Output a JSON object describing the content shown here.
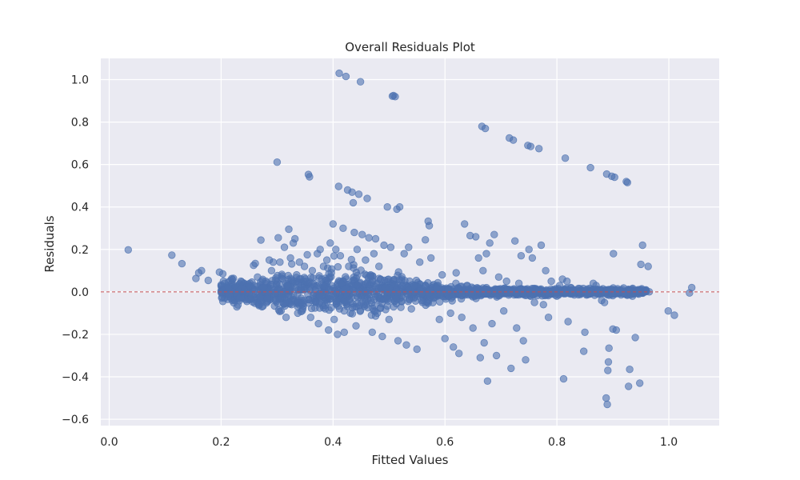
{
  "chart_data": {
    "type": "scatter",
    "title": "Overall Residuals Plot",
    "xlabel": "Fitted Values",
    "ylabel": "Residuals",
    "xlim": [
      -0.015,
      1.09
    ],
    "ylim": [
      -0.63,
      1.1
    ],
    "xticks": [
      0.0,
      0.2,
      0.4,
      0.6,
      0.8,
      1.0
    ],
    "yticks": [
      -0.6,
      -0.4,
      -0.2,
      0.0,
      0.2,
      0.4,
      0.6,
      0.8,
      1.0
    ],
    "xtick_labels": [
      "0.0",
      "0.2",
      "0.4",
      "0.6",
      "0.8",
      "1.0"
    ],
    "ytick_labels": [
      "−0.6",
      "−0.4",
      "−0.2",
      "0.0",
      "0.2",
      "0.4",
      "0.6",
      "0.8",
      "1.0"
    ],
    "grid": true,
    "reference_line": {
      "y": 0,
      "color": "#c44e52",
      "style": "dashed"
    },
    "colors": {
      "point": "#4c72b0",
      "background": "#eaeaf2",
      "grid": "#ffffff"
    },
    "series": [
      {
        "points": [
          [
            0.034,
            0.198
          ],
          [
            0.112,
            0.173
          ],
          [
            0.13,
            0.133
          ],
          [
            0.155,
            0.063
          ],
          [
            0.16,
            0.09
          ],
          [
            0.165,
            0.1
          ],
          [
            0.177,
            0.054
          ],
          [
            0.197,
            0.093
          ],
          [
            0.203,
            0.085
          ],
          [
            0.206,
            0.04
          ],
          [
            0.2,
            -0.003
          ],
          [
            0.212,
            0.02
          ],
          [
            0.215,
            -0.012
          ],
          [
            0.22,
            0.058
          ],
          [
            0.225,
            0.03
          ],
          [
            0.228,
            -0.02
          ],
          [
            0.232,
            -0.03
          ],
          [
            0.237,
            0.046
          ],
          [
            0.242,
            0.01
          ],
          [
            0.246,
            -0.045
          ],
          [
            0.25,
            0.03
          ],
          [
            0.255,
            -0.01
          ],
          [
            0.258,
            0.125
          ],
          [
            0.261,
            0.134
          ],
          [
            0.265,
            0.07
          ],
          [
            0.268,
            -0.06
          ],
          [
            0.271,
            0.244
          ],
          [
            0.273,
            -0.07
          ],
          [
            0.276,
            0.02
          ],
          [
            0.28,
            0.05
          ],
          [
            0.283,
            -0.03
          ],
          [
            0.286,
            0.15
          ],
          [
            0.29,
            0.1
          ],
          [
            0.293,
            0.14
          ],
          [
            0.297,
            -0.04
          ],
          [
            0.3,
            0.611
          ],
          [
            0.302,
            0.255
          ],
          [
            0.305,
            0.14
          ],
          [
            0.307,
            -0.09
          ],
          [
            0.31,
            0.06
          ],
          [
            0.313,
            0.21
          ],
          [
            0.316,
            -0.12
          ],
          [
            0.318,
            0.03
          ],
          [
            0.321,
            0.295
          ],
          [
            0.324,
            0.16
          ],
          [
            0.326,
            -0.06
          ],
          [
            0.329,
            0.23
          ],
          [
            0.332,
            0.25
          ],
          [
            0.335,
            0.08
          ],
          [
            0.337,
            -0.1
          ],
          [
            0.34,
            0.14
          ],
          [
            0.343,
            0.01
          ],
          [
            0.346,
            -0.08
          ],
          [
            0.349,
            0.12
          ],
          [
            0.352,
            0.05
          ],
          [
            0.354,
            0.175
          ],
          [
            0.356,
            0.553
          ],
          [
            0.358,
            0.542
          ],
          [
            0.36,
            -0.12
          ],
          [
            0.363,
            0.1
          ],
          [
            0.366,
            0.03
          ],
          [
            0.369,
            -0.05
          ],
          [
            0.372,
            0.18
          ],
          [
            0.374,
            -0.15
          ],
          [
            0.377,
            0.2
          ],
          [
            0.38,
            0.06
          ],
          [
            0.383,
            0.12
          ],
          [
            0.386,
            -0.08
          ],
          [
            0.389,
            0.15
          ],
          [
            0.392,
            -0.18
          ],
          [
            0.395,
            0.23
          ],
          [
            0.397,
            0.09
          ],
          [
            0.4,
            0.32
          ],
          [
            0.402,
            -0.13
          ],
          [
            0.405,
            0.2
          ],
          [
            0.408,
            -0.2
          ],
          [
            0.41,
            0.497
          ],
          [
            0.411,
            1.03
          ],
          [
            0.413,
            0.17
          ],
          [
            0.415,
            0.04
          ],
          [
            0.418,
            0.3
          ],
          [
            0.42,
            -0.19
          ],
          [
            0.423,
            1.015
          ],
          [
            0.426,
            0.48
          ],
          [
            0.428,
            0.12
          ],
          [
            0.431,
            -0.1
          ],
          [
            0.434,
            0.47
          ],
          [
            0.436,
            0.42
          ],
          [
            0.438,
            0.28
          ],
          [
            0.441,
            -0.16
          ],
          [
            0.443,
            0.2
          ],
          [
            0.446,
            0.46
          ],
          [
            0.449,
            0.99
          ],
          [
            0.452,
            0.27
          ],
          [
            0.455,
            -0.06
          ],
          [
            0.458,
            0.15
          ],
          [
            0.461,
            0.44
          ],
          [
            0.464,
            0.255
          ],
          [
            0.467,
            0.08
          ],
          [
            0.47,
            -0.19
          ],
          [
            0.473,
            0.18
          ],
          [
            0.476,
            0.25
          ],
          [
            0.479,
            -0.1
          ],
          [
            0.482,
            0.12
          ],
          [
            0.485,
            0.06
          ],
          [
            0.488,
            -0.21
          ],
          [
            0.491,
            0.22
          ],
          [
            0.494,
            0.02
          ],
          [
            0.497,
            0.4
          ],
          [
            0.5,
            -0.13
          ],
          [
            0.503,
            0.21
          ],
          [
            0.506,
            0.922
          ],
          [
            0.508,
            0.925
          ],
          [
            0.511,
            0.92
          ],
          [
            0.514,
            0.39
          ],
          [
            0.516,
            -0.23
          ],
          [
            0.519,
            0.4
          ],
          [
            0.523,
            0.06
          ],
          [
            0.527,
            0.18
          ],
          [
            0.531,
            -0.25
          ],
          [
            0.535,
            0.21
          ],
          [
            0.54,
            -0.08
          ],
          [
            0.545,
            0.03
          ],
          [
            0.55,
            -0.27
          ],
          [
            0.555,
            0.14
          ],
          [
            0.56,
            -0.05
          ],
          [
            0.565,
            0.245
          ],
          [
            0.57,
            0.333
          ],
          [
            0.572,
            0.312
          ],
          [
            0.575,
            0.16
          ],
          [
            0.58,
            -0.03
          ],
          [
            0.585,
            0.02
          ],
          [
            0.59,
            -0.13
          ],
          [
            0.595,
            0.08
          ],
          [
            0.6,
            -0.22
          ],
          [
            0.605,
            0.01
          ],
          [
            0.61,
            -0.1
          ],
          [
            0.615,
            -0.26
          ],
          [
            0.62,
            0.09
          ],
          [
            0.625,
            -0.29
          ],
          [
            0.63,
            -0.12
          ],
          [
            0.635,
            0.32
          ],
          [
            0.64,
            0.03
          ],
          [
            0.645,
            0.265
          ],
          [
            0.65,
            -0.17
          ],
          [
            0.655,
            0.26
          ],
          [
            0.66,
            0.16
          ],
          [
            0.663,
            -0.31
          ],
          [
            0.666,
            0.78
          ],
          [
            0.668,
            0.1
          ],
          [
            0.67,
            -0.24
          ],
          [
            0.672,
            0.77
          ],
          [
            0.674,
            0.18
          ],
          [
            0.676,
            -0.42
          ],
          [
            0.68,
            0.23
          ],
          [
            0.684,
            -0.15
          ],
          [
            0.688,
            0.27
          ],
          [
            0.692,
            -0.3
          ],
          [
            0.696,
            0.07
          ],
          [
            0.7,
            0.01
          ],
          [
            0.705,
            -0.09
          ],
          [
            0.71,
            0.05
          ],
          [
            0.715,
            0.725
          ],
          [
            0.718,
            -0.36
          ],
          [
            0.722,
            0.715
          ],
          [
            0.725,
            0.24
          ],
          [
            0.728,
            -0.17
          ],
          [
            0.732,
            0.04
          ],
          [
            0.736,
            0.17
          ],
          [
            0.74,
            -0.23
          ],
          [
            0.744,
            -0.32
          ],
          [
            0.748,
            0.69
          ],
          [
            0.75,
            0.2
          ],
          [
            0.753,
            0.685
          ],
          [
            0.756,
            0.16
          ],
          [
            0.76,
            -0.05
          ],
          [
            0.764,
            0.005
          ],
          [
            0.768,
            0.675
          ],
          [
            0.772,
            0.22
          ],
          [
            0.776,
            -0.06
          ],
          [
            0.78,
            0.1
          ],
          [
            0.785,
            -0.12
          ],
          [
            0.79,
            0.05
          ],
          [
            0.795,
            0.01
          ],
          [
            0.8,
            -0.02
          ],
          [
            0.805,
            0.03
          ],
          [
            0.81,
            0.06
          ],
          [
            0.812,
            -0.41
          ],
          [
            0.815,
            0.63
          ],
          [
            0.818,
            0.05
          ],
          [
            0.82,
            -0.14
          ],
          [
            0.825,
            0.02
          ],
          [
            0.83,
            0.01
          ],
          [
            0.84,
            0.0
          ],
          [
            0.848,
            -0.28
          ],
          [
            0.85,
            -0.19
          ],
          [
            0.855,
            -0.01
          ],
          [
            0.86,
            0.585
          ],
          [
            0.865,
            0.04
          ],
          [
            0.87,
            0.03
          ],
          [
            0.875,
            0.01
          ],
          [
            0.88,
            -0.04
          ],
          [
            0.885,
            -0.05
          ],
          [
            0.888,
            -0.5
          ],
          [
            0.889,
            0.555
          ],
          [
            0.89,
            -0.53
          ],
          [
            0.891,
            -0.37
          ],
          [
            0.892,
            -0.33
          ],
          [
            0.893,
            -0.265
          ],
          [
            0.895,
            0.01
          ],
          [
            0.898,
            0.545
          ],
          [
            0.9,
            -0.175
          ],
          [
            0.901,
            0.18
          ],
          [
            0.903,
            0.54
          ],
          [
            0.906,
            -0.18
          ],
          [
            0.91,
            0.0
          ],
          [
            0.915,
            0.005
          ],
          [
            0.92,
            -0.01
          ],
          [
            0.924,
            0.52
          ],
          [
            0.926,
            0.515
          ],
          [
            0.928,
            -0.445
          ],
          [
            0.93,
            -0.365
          ],
          [
            0.935,
            -0.02
          ],
          [
            0.94,
            -0.215
          ],
          [
            0.945,
            0.005
          ],
          [
            0.948,
            -0.43
          ],
          [
            0.95,
            0.13
          ],
          [
            0.953,
            0.22
          ],
          [
            0.958,
            0.0
          ],
          [
            0.963,
            0.12
          ],
          [
            0.965,
            0.0
          ],
          [
            0.999,
            -0.09
          ],
          [
            1.01,
            -0.11
          ],
          [
            1.037,
            -0.005
          ],
          [
            1.041,
            0.02
          ]
        ]
      }
    ],
    "dense_band": {
      "x_range": [
        0.2,
        0.96
      ],
      "base_spread": 0.08,
      "peak_x": 0.39,
      "count": 1600,
      "seed": 7
    }
  }
}
